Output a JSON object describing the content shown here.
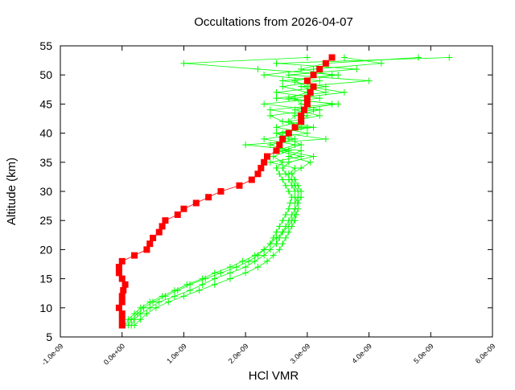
{
  "chart_data": {
    "type": "line",
    "title": "Occultations from 2026-04-07",
    "xlabel": "HCl VMR",
    "ylabel": "Altitude (km)",
    "xlim": [
      -1e-09,
      6e-09
    ],
    "ylim": [
      5,
      55
    ],
    "grid": false,
    "x_ticks": [
      "-1.0e-09",
      "0.0e+00",
      "1.0e-09",
      "2.0e-09",
      "3.0e-09",
      "4.0e-09",
      "5.0e-09",
      "6.0e-09"
    ],
    "x_tick_values": [
      -1e-09,
      0,
      1e-09,
      2e-09,
      3e-09,
      4e-09,
      5e-09,
      6e-09
    ],
    "y_ticks": [
      "5",
      "10",
      "15",
      "20",
      "25",
      "30",
      "35",
      "40",
      "45",
      "50",
      "55"
    ],
    "y_tick_values": [
      5,
      10,
      15,
      20,
      25,
      30,
      35,
      40,
      45,
      50,
      55
    ],
    "colors": {
      "highlight": "#ff0000",
      "others": "#00ff00"
    },
    "altitudes": [
      7,
      8,
      9,
      10,
      11,
      12,
      13,
      14,
      15,
      16,
      17,
      18,
      19,
      20,
      21,
      22,
      23,
      24,
      25,
      26,
      27,
      28,
      29,
      30,
      31,
      32,
      33,
      34,
      35,
      36,
      37,
      38,
      39,
      40,
      41,
      42,
      43,
      44,
      45,
      46,
      47,
      48,
      49,
      50,
      51,
      52,
      53
    ],
    "series": [
      {
        "style": "green-plus",
        "values": [
          1e-10,
          1.5e-10,
          2.5e-10,
          3.5e-10,
          5e-10,
          7e-10,
          9e-10,
          1.1e-09,
          1.35e-09,
          1.6e-09,
          1.85e-09,
          2.05e-09,
          2.2e-09,
          2.3e-09,
          2.4e-09,
          2.45e-09,
          2.5e-09,
          2.55e-09,
          2.6e-09,
          2.65e-09,
          2.7e-09,
          2.72e-09,
          2.75e-09,
          2.7e-09,
          2.65e-09,
          2.6e-09,
          2.55e-09,
          2.5e-09,
          2.6e-09,
          2.45e-09,
          2.7e-09,
          2.4e-09,
          2.8e-09,
          2.5e-09,
          3e-09,
          2.6e-09,
          2.4e-09,
          3.1e-09,
          2.3e-09,
          3.2e-09,
          2.5e-09,
          3.3e-09,
          2.6e-09,
          3.5e-09,
          2.2e-09,
          1e-09,
          3e-09
        ]
      },
      {
        "style": "green-plus",
        "values": [
          2e-10,
          3e-10,
          4e-10,
          5.5e-10,
          7.5e-10,
          1e-09,
          1.25e-09,
          1.5e-09,
          1.75e-09,
          2e-09,
          2.2e-09,
          2.35e-09,
          2.45e-09,
          2.55e-09,
          2.6e-09,
          2.65e-09,
          2.7e-09,
          2.75e-09,
          2.8e-09,
          2.82e-09,
          2.85e-09,
          2.85e-09,
          2.9e-09,
          2.9e-09,
          2.85e-09,
          2.8e-09,
          2.75e-09,
          2.9e-09,
          3.05e-09,
          2.7e-09,
          2.9e-09,
          2e-09,
          3.3e-09,
          2.6e-09,
          2.9e-09,
          2.7e-09,
          3.2e-09,
          2.8e-09,
          3.5e-09,
          2.5e-09,
          3.3e-09,
          2.9e-09,
          4e-09,
          2.7e-09,
          3.8e-09,
          2.5e-09,
          5.3e-09
        ]
      },
      {
        "style": "green-plus",
        "values": [
          5e-11,
          1e-10,
          2e-10,
          3e-10,
          4.5e-10,
          6.5e-10,
          8.5e-10,
          1.05e-09,
          1.3e-09,
          1.5e-09,
          1.75e-09,
          1.95e-09,
          2.15e-09,
          2.3e-09,
          2.4e-09,
          2.5e-09,
          2.6e-09,
          2.65e-09,
          2.7e-09,
          2.75e-09,
          2.8e-09,
          2.85e-09,
          2.8e-09,
          2.8e-09,
          2.75e-09,
          2.7e-09,
          2.7e-09,
          2.8e-09,
          2.4e-09,
          2.9e-09,
          2.5e-09,
          2.8e-09,
          2.3e-09,
          3e-09,
          2.5e-09,
          2.9e-09,
          3e-09,
          2.4e-09,
          3.4e-09,
          2.7e-09,
          3e-09,
          2.6e-09,
          3.2e-09,
          2.3e-09,
          3.1e-09,
          4.2e-09,
          3.6e-09
        ]
      },
      {
        "style": "green-plus",
        "values": [
          1.5e-10,
          2e-10,
          3e-10,
          4.5e-10,
          6e-10,
          8.5e-10,
          1.1e-09,
          1.3e-09,
          1.5e-09,
          1.75e-09,
          2e-09,
          2.15e-09,
          2.3e-09,
          2.4e-09,
          2.5e-09,
          2.55e-09,
          2.6e-09,
          2.7e-09,
          2.75e-09,
          2.8e-09,
          2.8e-09,
          2.8e-09,
          2.85e-09,
          2.85e-09,
          2.8e-09,
          2.75e-09,
          2.65e-09,
          2.6e-09,
          2.7e-09,
          3.1e-09,
          2.6e-09,
          2.9e-09,
          2.7e-09,
          2.5e-09,
          3.1e-09,
          2.7e-09,
          2.8e-09,
          3.2e-09,
          2.9e-09,
          2.8e-09,
          3.6e-09,
          3e-09,
          2.8e-09,
          3.4e-09,
          2.9e-09,
          3.3e-09,
          4.8e-09
        ]
      },
      {
        "style": "red-square",
        "values": [
          0.0,
          0.0,
          0.0,
          -5e-11,
          0.0,
          0.0,
          2e-11,
          5e-11,
          0.0,
          -5e-11,
          -5e-11,
          0.0,
          2e-10,
          4e-10,
          4.5e-10,
          5e-10,
          6e-10,
          6.5e-10,
          7e-10,
          9e-10,
          1e-09,
          1.2e-09,
          1.4e-09,
          1.6e-09,
          1.9e-09,
          2.1e-09,
          2.2e-09,
          2.25e-09,
          2.3e-09,
          2.35e-09,
          2.5e-09,
          2.55e-09,
          2.6e-09,
          2.7e-09,
          2.8e-09,
          2.9e-09,
          2.9e-09,
          2.95e-09,
          3e-09,
          3e-09,
          3.05e-09,
          3.1e-09,
          3e-09,
          3.1e-09,
          3.2e-09,
          3.3e-09,
          3.4e-09
        ]
      }
    ]
  }
}
